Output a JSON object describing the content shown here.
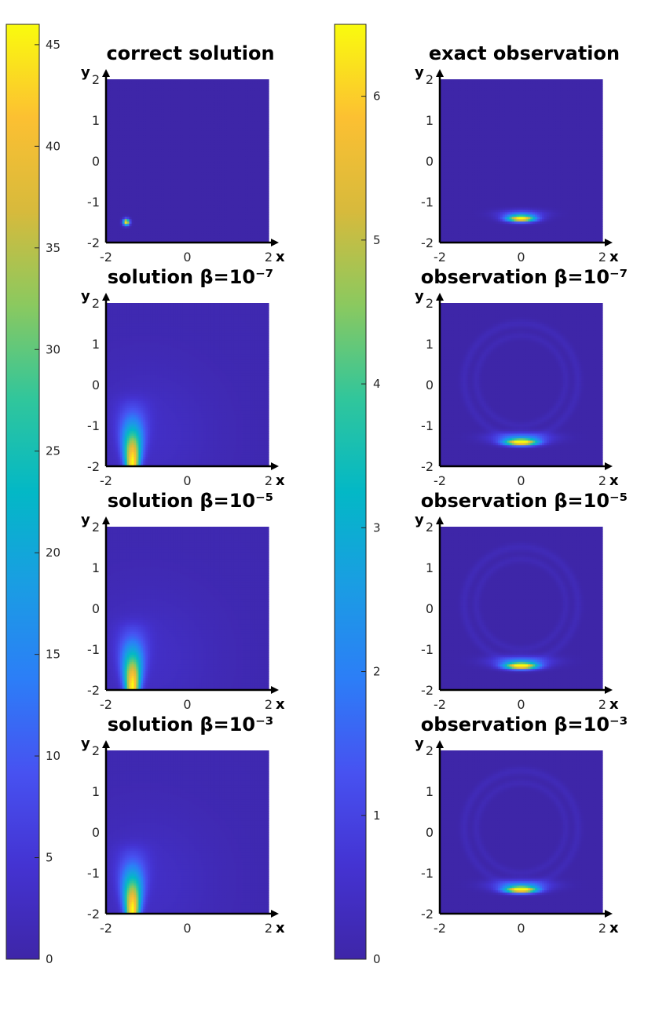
{
  "colors": {
    "viridis_low": "#3e26a8",
    "viridis_mid": "#13beb8",
    "viridis_high": "#f9fb0e",
    "axis": "#000000",
    "background": "#ffffff"
  },
  "chart_data": [
    {
      "type": "heatmap",
      "title": "correct solution",
      "xlabel": "x",
      "ylabel": "y",
      "xlim": [
        -2,
        2
      ],
      "ylim": [
        -2,
        2
      ],
      "xticks": [
        "-2",
        "0",
        "2"
      ],
      "yticks": [
        "-2",
        "-1",
        "0",
        "1",
        "2"
      ],
      "field": "point_source",
      "peak_location": [
        -1.5,
        -1.5
      ],
      "color_range": [
        0,
        46
      ],
      "grid": false
    },
    {
      "type": "heatmap",
      "title": "exact observation",
      "xlabel": "x",
      "ylabel": "y",
      "xlim": [
        -2,
        2
      ],
      "ylim": [
        -2,
        2
      ],
      "xticks": [
        "-2",
        "0",
        "2"
      ],
      "yticks": [
        "-2",
        "-1",
        "0",
        "1",
        "2"
      ],
      "field": "observation_band",
      "peak_location": [
        0,
        -1.4
      ],
      "color_range": [
        0,
        6.5
      ],
      "grid": false
    },
    {
      "type": "heatmap",
      "title": "solution β=10⁻⁷",
      "xlabel": "x",
      "ylabel": "y",
      "xlim": [
        -2,
        2
      ],
      "ylim": [
        -2,
        2
      ],
      "xticks": [
        "-2",
        "0",
        "2"
      ],
      "yticks": [
        "-2",
        "-1",
        "0",
        "1",
        "2"
      ],
      "field": "diffuse_solution",
      "peak_location": [
        -1.3,
        -2
      ],
      "color_range": [
        0,
        46
      ],
      "grid": false
    },
    {
      "type": "heatmap",
      "title": "observation β=10⁻⁷",
      "xlabel": "x",
      "ylabel": "y",
      "xlim": [
        -2,
        2
      ],
      "ylim": [
        -2,
        2
      ],
      "xticks": [
        "-2",
        "0",
        "2"
      ],
      "yticks": [
        "-2",
        "-1",
        "0",
        "1",
        "2"
      ],
      "field": "observation_rings",
      "peak_location": [
        0,
        -1.4
      ],
      "color_range": [
        0,
        6.5
      ],
      "grid": false
    },
    {
      "type": "heatmap",
      "title": "solution β=10⁻⁵",
      "xlabel": "x",
      "ylabel": "y",
      "xlim": [
        -2,
        2
      ],
      "ylim": [
        -2,
        2
      ],
      "xticks": [
        "-2",
        "0",
        "2"
      ],
      "yticks": [
        "-2",
        "-1",
        "0",
        "1",
        "2"
      ],
      "field": "diffuse_solution",
      "peak_location": [
        -1.3,
        -2
      ],
      "color_range": [
        0,
        46
      ],
      "grid": false
    },
    {
      "type": "heatmap",
      "title": "observation β=10⁻⁵",
      "xlabel": "x",
      "ylabel": "y",
      "xlim": [
        -2,
        2
      ],
      "ylim": [
        -2,
        2
      ],
      "xticks": [
        "-2",
        "0",
        "2"
      ],
      "yticks": [
        "-2",
        "-1",
        "0",
        "1",
        "2"
      ],
      "field": "observation_rings",
      "peak_location": [
        0,
        -1.4
      ],
      "color_range": [
        0,
        6.5
      ],
      "grid": false
    },
    {
      "type": "heatmap",
      "title": "solution β=10⁻³",
      "xlabel": "x",
      "ylabel": "y",
      "xlim": [
        -2,
        2
      ],
      "ylim": [
        -2,
        2
      ],
      "xticks": [
        "-2",
        "0",
        "2"
      ],
      "yticks": [
        "-2",
        "-1",
        "0",
        "1",
        "2"
      ],
      "field": "diffuse_solution",
      "peak_location": [
        -1.3,
        -2
      ],
      "color_range": [
        0,
        46
      ],
      "grid": false
    },
    {
      "type": "heatmap",
      "title": "observation β=10⁻³",
      "xlabel": "x",
      "ylabel": "y",
      "xlim": [
        -2,
        2
      ],
      "ylim": [
        -2,
        2
      ],
      "xticks": [
        "-2",
        "0",
        "2"
      ],
      "yticks": [
        "-2",
        "-1",
        "0",
        "1",
        "2"
      ],
      "field": "observation_rings",
      "peak_location": [
        0,
        -1.4
      ],
      "color_range": [
        0,
        6.5
      ],
      "grid": false
    }
  ],
  "colorbars": [
    {
      "name": "solution-colorbar",
      "range": [
        0,
        46
      ],
      "ticks": [
        0,
        5,
        10,
        15,
        20,
        25,
        30,
        35,
        40,
        45
      ],
      "tick_labels": [
        "0",
        "5",
        "10",
        "15",
        "20",
        "25",
        "30",
        "35",
        "40",
        "45"
      ]
    },
    {
      "name": "observation-colorbar",
      "range": [
        0,
        6.5
      ],
      "ticks": [
        0,
        1,
        2,
        3,
        4,
        5,
        6
      ],
      "tick_labels": [
        "0",
        "1",
        "2",
        "3",
        "4",
        "5",
        "6"
      ]
    }
  ]
}
